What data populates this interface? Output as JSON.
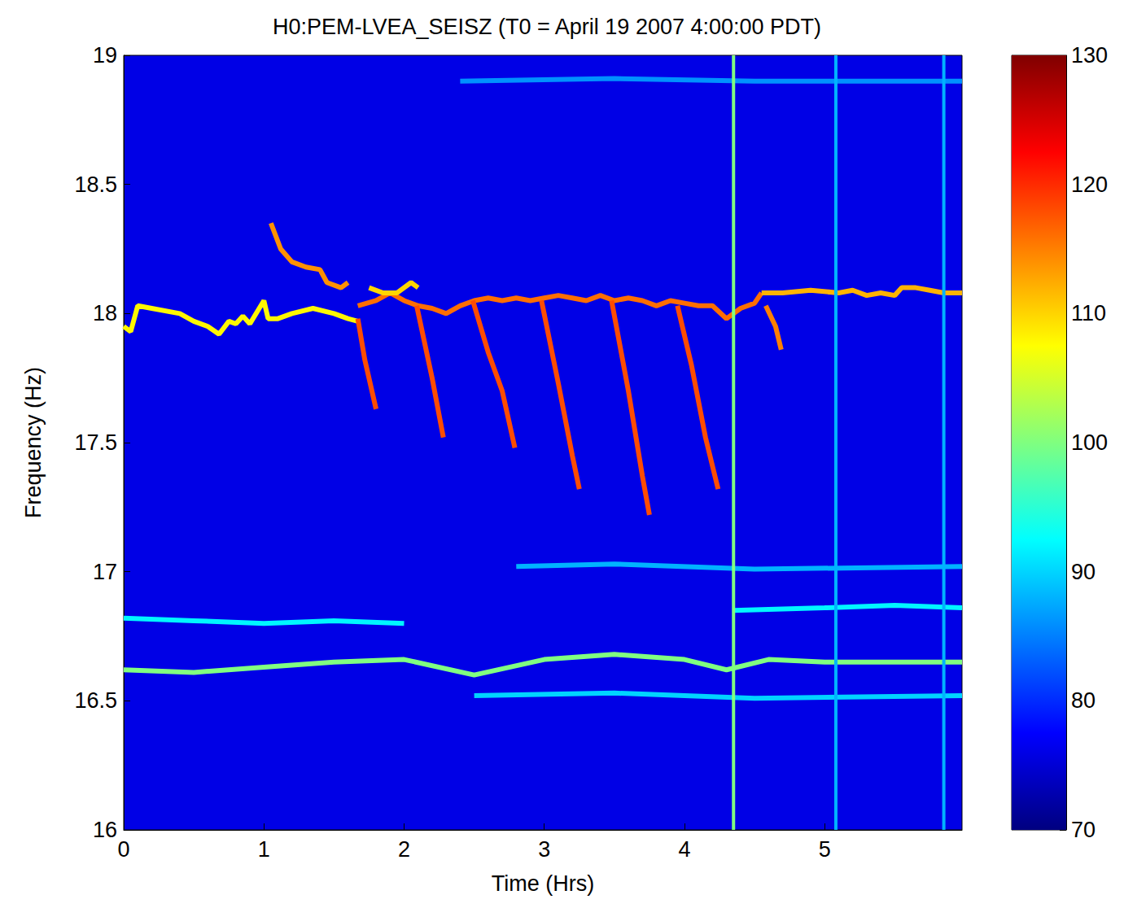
{
  "chart_data": {
    "type": "heatmap",
    "title": "H0:PEM-LVEA_SEISZ (T0 = April 19 2007 4:00:00 PDT)",
    "xlabel": "Time (Hrs)",
    "ylabel": "Frequency (Hz)",
    "xlim": [
      0,
      5.98
    ],
    "ylim": [
      16,
      19
    ],
    "xticks": [
      0,
      1,
      2,
      3,
      4,
      5
    ],
    "yticks": [
      16,
      16.5,
      17,
      17.5,
      18,
      18.5,
      19
    ],
    "grid": false,
    "colorbar": {
      "range": [
        70,
        130
      ],
      "ticks": [
        70,
        80,
        90,
        100,
        110,
        120,
        130
      ]
    },
    "background": 76,
    "tracks": [
      {
        "level": 108,
        "points": [
          [
            0,
            17.95
          ],
          [
            0.05,
            17.93
          ],
          [
            0.1,
            18.03
          ],
          [
            0.2,
            18.02
          ],
          [
            0.4,
            18.0
          ],
          [
            0.5,
            17.97
          ],
          [
            0.6,
            17.95
          ],
          [
            0.68,
            17.92
          ],
          [
            0.75,
            17.97
          ],
          [
            0.8,
            17.96
          ],
          [
            0.85,
            17.99
          ],
          [
            0.9,
            17.96
          ],
          [
            1.0,
            18.05
          ],
          [
            1.03,
            17.98
          ],
          [
            1.1,
            17.98
          ],
          [
            1.2,
            18.0
          ],
          [
            1.35,
            18.02
          ],
          [
            1.5,
            18.0
          ],
          [
            1.6,
            17.98
          ],
          [
            1.67,
            17.97
          ]
        ]
      },
      {
        "level": 116,
        "points": [
          [
            1.67,
            18.03
          ],
          [
            1.8,
            18.05
          ],
          [
            1.9,
            18.08
          ],
          [
            2.0,
            18.05
          ],
          [
            2.1,
            18.03
          ],
          [
            2.2,
            18.02
          ],
          [
            2.3,
            18.0
          ],
          [
            2.4,
            18.03
          ],
          [
            2.5,
            18.05
          ],
          [
            2.6,
            18.06
          ],
          [
            2.7,
            18.05
          ],
          [
            2.8,
            18.06
          ],
          [
            2.9,
            18.05
          ],
          [
            3.0,
            18.06
          ],
          [
            3.1,
            18.07
          ],
          [
            3.2,
            18.06
          ],
          [
            3.3,
            18.05
          ],
          [
            3.4,
            18.07
          ],
          [
            3.5,
            18.05
          ],
          [
            3.6,
            18.06
          ],
          [
            3.7,
            18.05
          ],
          [
            3.8,
            18.03
          ],
          [
            3.9,
            18.05
          ],
          [
            4.0,
            18.04
          ],
          [
            4.1,
            18.03
          ],
          [
            4.2,
            18.03
          ],
          [
            4.3,
            17.98
          ],
          [
            4.4,
            18.02
          ],
          [
            4.5,
            18.04
          ],
          [
            4.55,
            18.08
          ]
        ]
      },
      {
        "level": 112,
        "points": [
          [
            4.55,
            18.08
          ],
          [
            4.7,
            18.08
          ],
          [
            4.9,
            18.09
          ],
          [
            5.1,
            18.08
          ],
          [
            5.2,
            18.09
          ],
          [
            5.3,
            18.07
          ],
          [
            5.4,
            18.08
          ],
          [
            5.5,
            18.07
          ],
          [
            5.55,
            18.1
          ],
          [
            5.65,
            18.1
          ],
          [
            5.75,
            18.09
          ],
          [
            5.85,
            18.08
          ],
          [
            5.98,
            18.08
          ]
        ]
      },
      {
        "level": 114,
        "points": [
          [
            1.05,
            18.35
          ],
          [
            1.12,
            18.25
          ],
          [
            1.2,
            18.2
          ],
          [
            1.3,
            18.18
          ],
          [
            1.4,
            18.17
          ],
          [
            1.45,
            18.12
          ],
          [
            1.55,
            18.1
          ],
          [
            1.6,
            18.12
          ]
        ]
      },
      {
        "level": 110,
        "points": [
          [
            1.75,
            18.1
          ],
          [
            1.85,
            18.08
          ],
          [
            1.95,
            18.08
          ],
          [
            2.05,
            18.12
          ],
          [
            2.1,
            18.1
          ]
        ]
      },
      {
        "level": 118,
        "points": [
          [
            1.67,
            17.98
          ],
          [
            1.72,
            17.82
          ],
          [
            1.8,
            17.63
          ]
        ]
      },
      {
        "level": 118,
        "points": [
          [
            2.09,
            18.03
          ],
          [
            2.2,
            17.75
          ],
          [
            2.28,
            17.52
          ]
        ]
      },
      {
        "level": 118,
        "points": [
          [
            2.49,
            18.05
          ],
          [
            2.6,
            17.85
          ],
          [
            2.7,
            17.7
          ],
          [
            2.79,
            17.48
          ]
        ]
      },
      {
        "level": 118,
        "points": [
          [
            2.98,
            18.05
          ],
          [
            3.1,
            17.73
          ],
          [
            3.2,
            17.45
          ],
          [
            3.25,
            17.32
          ]
        ]
      },
      {
        "level": 118,
        "points": [
          [
            3.48,
            18.05
          ],
          [
            3.6,
            17.7
          ],
          [
            3.7,
            17.37
          ],
          [
            3.75,
            17.22
          ]
        ]
      },
      {
        "level": 118,
        "points": [
          [
            3.95,
            18.03
          ],
          [
            4.05,
            17.8
          ],
          [
            4.15,
            17.52
          ],
          [
            4.24,
            17.32
          ]
        ]
      },
      {
        "level": 115,
        "points": [
          [
            4.58,
            18.03
          ],
          [
            4.65,
            17.95
          ],
          [
            4.69,
            17.86
          ]
        ]
      },
      {
        "level": 100,
        "points": [
          [
            0,
            16.62
          ],
          [
            0.5,
            16.61
          ],
          [
            1.0,
            16.63
          ],
          [
            1.5,
            16.65
          ],
          [
            2.0,
            16.66
          ],
          [
            2.5,
            16.6
          ],
          [
            3.0,
            16.66
          ],
          [
            3.5,
            16.68
          ],
          [
            4.0,
            16.66
          ],
          [
            4.3,
            16.62
          ],
          [
            4.6,
            16.66
          ],
          [
            5.0,
            16.65
          ],
          [
            5.5,
            16.65
          ],
          [
            5.98,
            16.65
          ]
        ]
      },
      {
        "level": 92,
        "points": [
          [
            0,
            16.82
          ],
          [
            0.5,
            16.81
          ],
          [
            1.0,
            16.8
          ],
          [
            1.5,
            16.81
          ],
          [
            2.0,
            16.8
          ]
        ]
      },
      {
        "level": 92,
        "points": [
          [
            4.35,
            16.85
          ],
          [
            5.0,
            16.86
          ],
          [
            5.5,
            16.87
          ],
          [
            5.98,
            16.86
          ]
        ]
      },
      {
        "level": 90,
        "points": [
          [
            2.5,
            16.52
          ],
          [
            3.5,
            16.53
          ],
          [
            4.5,
            16.51
          ],
          [
            5.98,
            16.52
          ]
        ]
      },
      {
        "level": 88,
        "points": [
          [
            2.8,
            17.02
          ],
          [
            3.5,
            17.03
          ],
          [
            4.5,
            17.01
          ],
          [
            5.98,
            17.02
          ]
        ]
      },
      {
        "level": 86,
        "points": [
          [
            2.4,
            18.9
          ],
          [
            3.5,
            18.91
          ],
          [
            4.5,
            18.9
          ],
          [
            5.98,
            18.9
          ]
        ]
      }
    ],
    "vertical_lines": [
      {
        "time": 4.35,
        "level": 100
      },
      {
        "time": 5.08,
        "level": 88
      },
      {
        "time": 5.85,
        "level": 88
      }
    ]
  }
}
